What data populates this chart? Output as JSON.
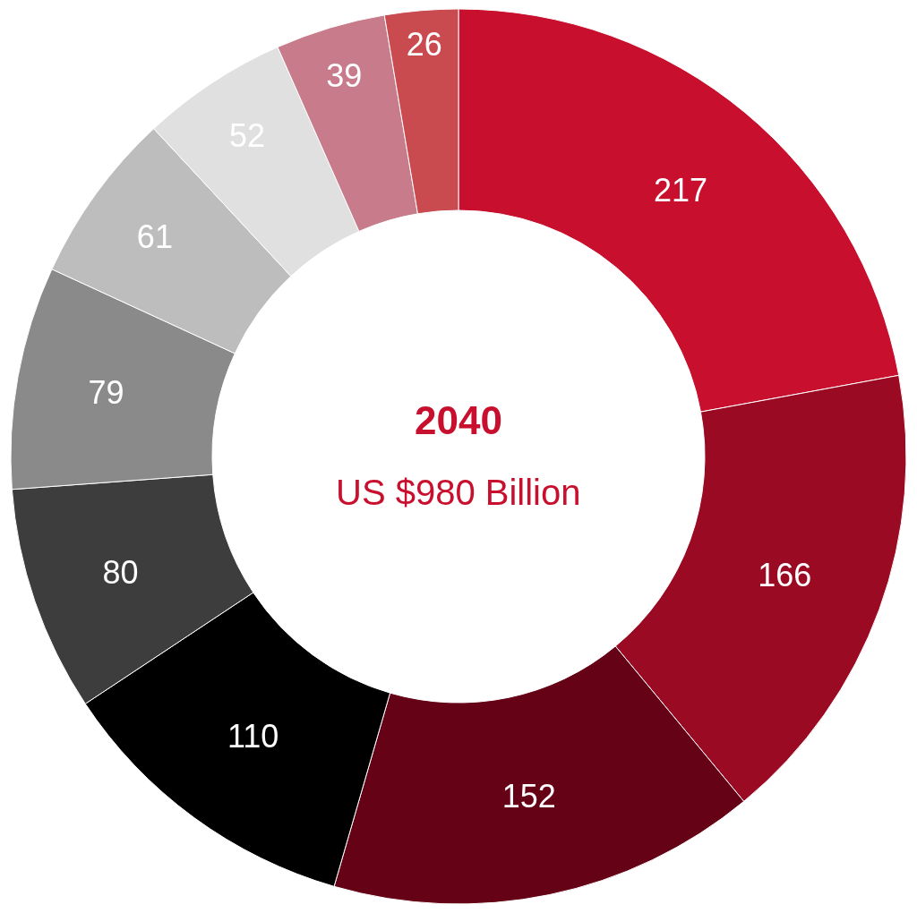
{
  "chart_data": {
    "type": "donut",
    "title": "2040",
    "subtitle": "US $980 Billion",
    "categories": [
      null,
      null,
      null,
      null,
      null,
      null,
      null,
      null,
      null,
      null
    ],
    "values": [
      217,
      166,
      152,
      110,
      80,
      79,
      61,
      52,
      39,
      26
    ],
    "colors": [
      "#c8102e",
      "#9b0a23",
      "#650216",
      "#000000",
      "#3d3d3d",
      "#8a8a8a",
      "#bdbdbd",
      "#e0e0e0",
      "#c77b8b",
      "#c94a4f"
    ],
    "data_labels": true,
    "legend": false
  }
}
